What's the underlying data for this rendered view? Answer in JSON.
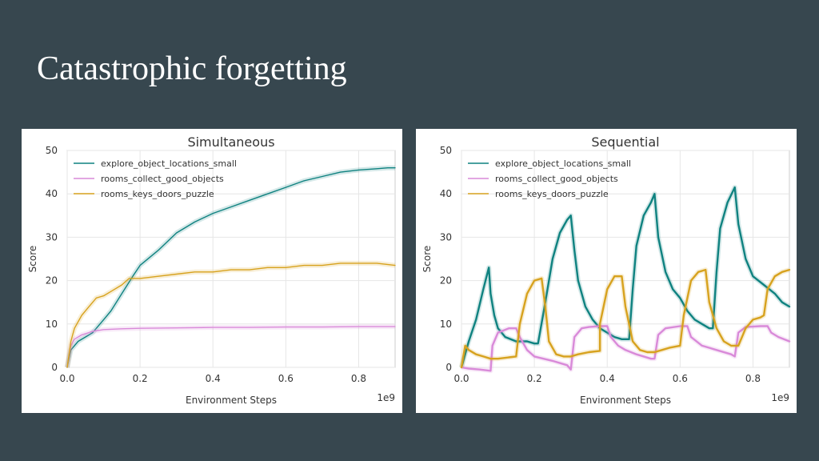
{
  "slide": {
    "title": "Catastrophic forgetting"
  },
  "colors": {
    "background": "#37474f",
    "teal": "#0f8280",
    "pink": "#d98ad9",
    "gold": "#d7a21e"
  },
  "chart_data": [
    {
      "type": "line",
      "title": "Simultaneous",
      "xlabel": "Environment Steps",
      "ylabel": "Score",
      "x_multiplier_label": "1e9",
      "xlim": [
        0,
        0.9
      ],
      "ylim": [
        0,
        50
      ],
      "xticks": [
        0.0,
        0.2,
        0.4,
        0.6,
        0.8
      ],
      "xtick_labels": [
        "0.0",
        "0.2",
        "0.4",
        "0.6",
        "0.8"
      ],
      "yticks": [
        0,
        10,
        20,
        30,
        40,
        50
      ],
      "ytick_labels": [
        "0",
        "10",
        "20",
        "30",
        "40",
        "50"
      ],
      "grid": true,
      "legend_position": "top-left",
      "series": [
        {
          "name": "explore_object_locations_small",
          "color": "#0f8280",
          "points": [
            [
              0,
              0
            ],
            [
              0.01,
              4
            ],
            [
              0.02,
              5
            ],
            [
              0.03,
              6
            ],
            [
              0.05,
              7
            ],
            [
              0.07,
              8
            ],
            [
              0.1,
              11
            ],
            [
              0.12,
              13
            ],
            [
              0.15,
              17
            ],
            [
              0.18,
              21
            ],
            [
              0.2,
              23.5
            ],
            [
              0.25,
              27
            ],
            [
              0.3,
              31
            ],
            [
              0.35,
              33.5
            ],
            [
              0.4,
              35.5
            ],
            [
              0.45,
              37
            ],
            [
              0.5,
              38.5
            ],
            [
              0.55,
              40
            ],
            [
              0.6,
              41.5
            ],
            [
              0.65,
              43
            ],
            [
              0.7,
              44
            ],
            [
              0.75,
              45
            ],
            [
              0.8,
              45.5
            ],
            [
              0.85,
              45.8
            ],
            [
              0.88,
              46
            ],
            [
              0.9,
              46
            ]
          ]
        },
        {
          "name": "rooms_collect_good_objects",
          "color": "#d98ad9",
          "points": [
            [
              0,
              0
            ],
            [
              0.01,
              5
            ],
            [
              0.02,
              6.5
            ],
            [
              0.04,
              7.5
            ],
            [
              0.07,
              8.3
            ],
            [
              0.1,
              8.7
            ],
            [
              0.15,
              8.9
            ],
            [
              0.2,
              9
            ],
            [
              0.3,
              9.1
            ],
            [
              0.4,
              9.2
            ],
            [
              0.5,
              9.2
            ],
            [
              0.6,
              9.3
            ],
            [
              0.7,
              9.3
            ],
            [
              0.8,
              9.4
            ],
            [
              0.9,
              9.4
            ]
          ]
        },
        {
          "name": "rooms_keys_doors_puzzle",
          "color": "#d7a21e",
          "points": [
            [
              0,
              0
            ],
            [
              0.01,
              6
            ],
            [
              0.02,
              9
            ],
            [
              0.04,
              12
            ],
            [
              0.06,
              14
            ],
            [
              0.08,
              16
            ],
            [
              0.1,
              16.5
            ],
            [
              0.12,
              17.5
            ],
            [
              0.15,
              19
            ],
            [
              0.17,
              20.5
            ],
            [
              0.2,
              20.5
            ],
            [
              0.25,
              21
            ],
            [
              0.3,
              21.5
            ],
            [
              0.35,
              22
            ],
            [
              0.4,
              22
            ],
            [
              0.45,
              22.5
            ],
            [
              0.5,
              22.5
            ],
            [
              0.55,
              23
            ],
            [
              0.6,
              23
            ],
            [
              0.65,
              23.5
            ],
            [
              0.7,
              23.5
            ],
            [
              0.75,
              24
            ],
            [
              0.8,
              24
            ],
            [
              0.85,
              24
            ],
            [
              0.9,
              23.5
            ]
          ]
        }
      ]
    },
    {
      "type": "line",
      "title": "Sequential",
      "xlabel": "Environment Steps",
      "ylabel": "Score",
      "x_multiplier_label": "1e9",
      "xlim": [
        0,
        0.9
      ],
      "ylim": [
        0,
        50
      ],
      "xticks": [
        0.0,
        0.2,
        0.4,
        0.6,
        0.8
      ],
      "xtick_labels": [
        "0.0",
        "0.2",
        "0.4",
        "0.6",
        "0.8"
      ],
      "yticks": [
        0,
        10,
        20,
        30,
        40,
        50
      ],
      "ytick_labels": [
        "0",
        "10",
        "20",
        "30",
        "40",
        "50"
      ],
      "grid": true,
      "legend_position": "top-left",
      "series": [
        {
          "name": "explore_object_locations_small",
          "color": "#0f8280",
          "points": [
            [
              0,
              0
            ],
            [
              0.02,
              6
            ],
            [
              0.04,
              11
            ],
            [
              0.06,
              18
            ],
            [
              0.075,
              23
            ],
            [
              0.08,
              17
            ],
            [
              0.09,
              12
            ],
            [
              0.1,
              9
            ],
            [
              0.12,
              7
            ],
            [
              0.15,
              6
            ],
            [
              0.18,
              6
            ],
            [
              0.2,
              5.5
            ],
            [
              0.21,
              5.5
            ],
            [
              0.23,
              15
            ],
            [
              0.25,
              25
            ],
            [
              0.27,
              31
            ],
            [
              0.29,
              34
            ],
            [
              0.3,
              35
            ],
            [
              0.31,
              27
            ],
            [
              0.32,
              20
            ],
            [
              0.34,
              14
            ],
            [
              0.36,
              11
            ],
            [
              0.38,
              9
            ],
            [
              0.4,
              8
            ],
            [
              0.42,
              7
            ],
            [
              0.44,
              6.5
            ],
            [
              0.46,
              6.5
            ],
            [
              0.47,
              18
            ],
            [
              0.48,
              28
            ],
            [
              0.5,
              35
            ],
            [
              0.52,
              38
            ],
            [
              0.53,
              40
            ],
            [
              0.54,
              30
            ],
            [
              0.56,
              22
            ],
            [
              0.58,
              18
            ],
            [
              0.6,
              16
            ],
            [
              0.62,
              13
            ],
            [
              0.64,
              11
            ],
            [
              0.66,
              10
            ],
            [
              0.68,
              9
            ],
            [
              0.69,
              9
            ],
            [
              0.7,
              22
            ],
            [
              0.71,
              32
            ],
            [
              0.73,
              38
            ],
            [
              0.75,
              41.5
            ],
            [
              0.76,
              33
            ],
            [
              0.78,
              25
            ],
            [
              0.8,
              21
            ],
            [
              0.83,
              19
            ],
            [
              0.86,
              17
            ],
            [
              0.88,
              15
            ],
            [
              0.9,
              14
            ]
          ]
        },
        {
          "name": "rooms_collect_good_objects",
          "color": "#d98ad9",
          "points": [
            [
              0,
              0
            ],
            [
              0.02,
              -0.3
            ],
            [
              0.05,
              -0.5
            ],
            [
              0.08,
              -0.8
            ],
            [
              0.085,
              5
            ],
            [
              0.1,
              8
            ],
            [
              0.13,
              9
            ],
            [
              0.15,
              9
            ],
            [
              0.16,
              7
            ],
            [
              0.18,
              4
            ],
            [
              0.2,
              2.5
            ],
            [
              0.25,
              1.5
            ],
            [
              0.29,
              0.5
            ],
            [
              0.3,
              -0.5
            ],
            [
              0.31,
              7
            ],
            [
              0.33,
              9
            ],
            [
              0.35,
              9.3
            ],
            [
              0.38,
              9.5
            ],
            [
              0.4,
              9.5
            ],
            [
              0.41,
              7
            ],
            [
              0.43,
              5
            ],
            [
              0.45,
              4
            ],
            [
              0.48,
              3
            ],
            [
              0.52,
              2
            ],
            [
              0.53,
              2
            ],
            [
              0.54,
              7.5
            ],
            [
              0.56,
              9
            ],
            [
              0.6,
              9.5
            ],
            [
              0.62,
              9.5
            ],
            [
              0.63,
              7
            ],
            [
              0.66,
              5
            ],
            [
              0.7,
              4
            ],
            [
              0.74,
              3
            ],
            [
              0.75,
              2.5
            ],
            [
              0.76,
              8
            ],
            [
              0.78,
              9.3
            ],
            [
              0.82,
              9.5
            ],
            [
              0.84,
              9.5
            ],
            [
              0.85,
              8
            ],
            [
              0.87,
              7
            ],
            [
              0.9,
              6
            ]
          ]
        },
        {
          "name": "rooms_keys_doors_puzzle",
          "color": "#d7a21e",
          "points": [
            [
              0,
              0
            ],
            [
              0.01,
              5
            ],
            [
              0.02,
              4
            ],
            [
              0.04,
              3
            ],
            [
              0.06,
              2.5
            ],
            [
              0.08,
              2
            ],
            [
              0.1,
              2
            ],
            [
              0.13,
              2.3
            ],
            [
              0.15,
              2.5
            ],
            [
              0.16,
              10
            ],
            [
              0.18,
              17
            ],
            [
              0.2,
              20
            ],
            [
              0.22,
              20.5
            ],
            [
              0.23,
              14
            ],
            [
              0.24,
              6
            ],
            [
              0.26,
              3
            ],
            [
              0.28,
              2.5
            ],
            [
              0.3,
              2.5
            ],
            [
              0.32,
              3
            ],
            [
              0.35,
              3.5
            ],
            [
              0.38,
              3.8
            ],
            [
              0.38,
              10
            ],
            [
              0.4,
              18
            ],
            [
              0.42,
              21
            ],
            [
              0.44,
              21
            ],
            [
              0.45,
              14
            ],
            [
              0.47,
              6
            ],
            [
              0.49,
              4
            ],
            [
              0.51,
              3.5
            ],
            [
              0.53,
              3.5
            ],
            [
              0.55,
              4
            ],
            [
              0.57,
              4.5
            ],
            [
              0.6,
              5
            ],
            [
              0.61,
              12
            ],
            [
              0.63,
              20
            ],
            [
              0.65,
              22
            ],
            [
              0.67,
              22.5
            ],
            [
              0.68,
              15
            ],
            [
              0.7,
              9
            ],
            [
              0.72,
              6
            ],
            [
              0.74,
              5
            ],
            [
              0.76,
              5
            ],
            [
              0.78,
              9
            ],
            [
              0.8,
              11
            ],
            [
              0.82,
              11.5
            ],
            [
              0.83,
              12
            ],
            [
              0.84,
              18
            ],
            [
              0.86,
              21
            ],
            [
              0.88,
              22
            ],
            [
              0.9,
              22.5
            ]
          ]
        }
      ]
    }
  ]
}
